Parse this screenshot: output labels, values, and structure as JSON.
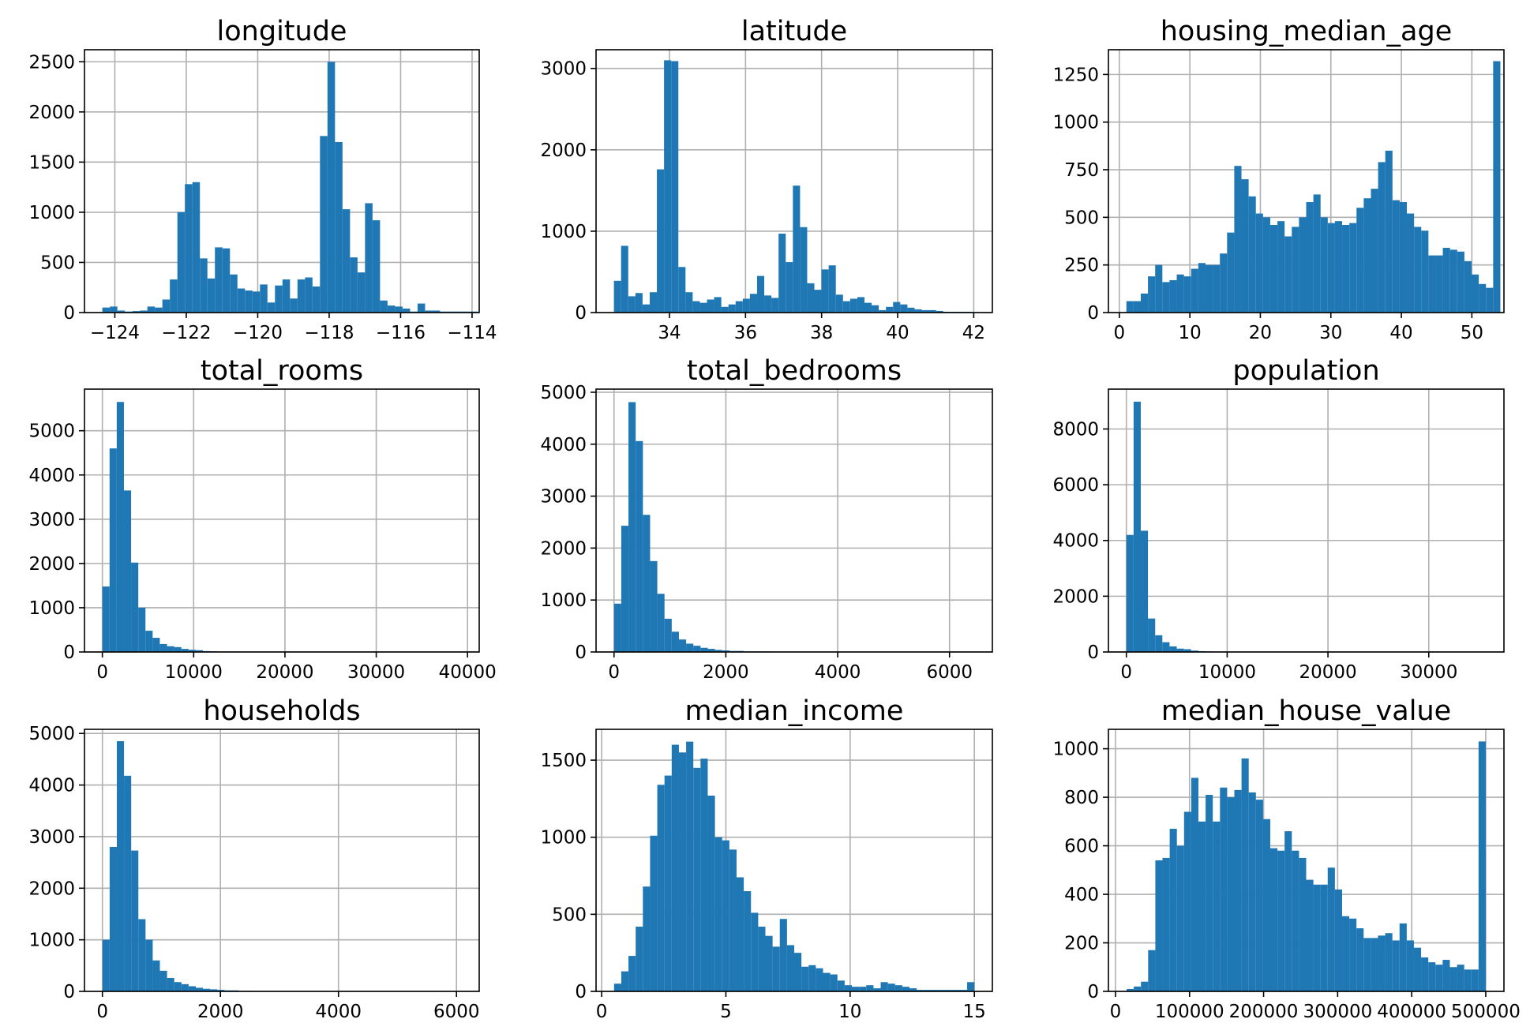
{
  "chart_data": [
    {
      "type": "bar",
      "title": "longitude",
      "xlabel": "",
      "ylabel": "",
      "xlim": [
        -124.85,
        -113.8
      ],
      "ylim": [
        0,
        2620
      ],
      "xticks": [
        -124,
        -122,
        -120,
        -118,
        -116,
        -114
      ],
      "xtick_labels": [
        "−124",
        "−122",
        "−120",
        "−118",
        "−116",
        "−114"
      ],
      "yticks": [
        0,
        500,
        1000,
        1500,
        2000,
        2500
      ],
      "ytick_labels": [
        "0",
        "500",
        "1000",
        "1500",
        "2000",
        "2500"
      ],
      "grid": true,
      "bin_start": -124.35,
      "bin_width": 0.2101,
      "values": [
        50,
        60,
        20,
        10,
        15,
        20,
        60,
        50,
        130,
        330,
        1000,
        1280,
        1300,
        540,
        340,
        650,
        640,
        380,
        240,
        220,
        210,
        280,
        100,
        270,
        330,
        140,
        330,
        350,
        260,
        1760,
        2500,
        1700,
        1030,
        550,
        400,
        1090,
        920,
        120,
        70,
        60,
        40,
        10,
        90,
        20,
        20,
        10,
        10,
        10,
        10,
        10
      ]
    },
    {
      "type": "bar",
      "title": "latitude",
      "xlabel": "",
      "ylabel": "",
      "xlim": [
        32.07,
        42.49
      ],
      "ylim": [
        0,
        3230
      ],
      "xticks": [
        34,
        36,
        38,
        40,
        42
      ],
      "xtick_labels": [
        "34",
        "36",
        "38",
        "40",
        "42"
      ],
      "yticks": [
        0,
        1000,
        2000,
        3000
      ],
      "ytick_labels": [
        "0",
        "1000",
        "2000",
        "3000"
      ],
      "grid": true,
      "bin_start": 32.54,
      "bin_width": 0.1882,
      "values": [
        390,
        820,
        200,
        240,
        100,
        250,
        1760,
        3100,
        3090,
        560,
        250,
        140,
        120,
        160,
        190,
        70,
        100,
        140,
        170,
        230,
        450,
        210,
        180,
        970,
        620,
        1560,
        1050,
        360,
        280,
        530,
        580,
        220,
        140,
        170,
        190,
        120,
        90,
        30,
        70,
        130,
        100,
        60,
        40,
        30,
        30,
        20,
        10,
        10,
        10,
        10
      ]
    },
    {
      "type": "bar",
      "title": "housing_median_age",
      "xlabel": "",
      "ylabel": "",
      "xlim": [
        -1.55,
        54.55
      ],
      "ylim": [
        0,
        1380
      ],
      "xticks": [
        0,
        10,
        20,
        30,
        40,
        50
      ],
      "xtick_labels": [
        "0",
        "10",
        "20",
        "30",
        "40",
        "50"
      ],
      "yticks": [
        0,
        250,
        500,
        750,
        1000,
        1250
      ],
      "ytick_labels": [
        "0",
        "250",
        "500",
        "750",
        "1000",
        "1250"
      ],
      "grid": true,
      "bin_start": 1,
      "bin_width": 1.02,
      "values": [
        60,
        60,
        100,
        190,
        250,
        160,
        170,
        200,
        190,
        230,
        260,
        250,
        250,
        310,
        420,
        770,
        700,
        610,
        520,
        500,
        460,
        480,
        400,
        450,
        500,
        580,
        620,
        500,
        470,
        480,
        460,
        470,
        550,
        600,
        650,
        790,
        850,
        590,
        580,
        520,
        450,
        430,
        300,
        300,
        340,
        330,
        320,
        270,
        200,
        150,
        130,
        1320
      ]
    },
    {
      "type": "bar",
      "title": "total_rooms",
      "xlabel": "",
      "ylabel": "",
      "xlim": [
        -1960,
        41280
      ],
      "ylim": [
        0,
        5940
      ],
      "xticks": [
        0,
        10000,
        20000,
        30000,
        40000
      ],
      "xtick_labels": [
        "0",
        "10000",
        "20000",
        "30000",
        "40000"
      ],
      "yticks": [
        0,
        1000,
        2000,
        3000,
        4000,
        5000
      ],
      "ytick_labels": [
        "0",
        "1000",
        "2000",
        "3000",
        "4000",
        "5000"
      ],
      "grid": true,
      "bin_start": 2,
      "bin_width": 786.4,
      "values": [
        1480,
        4600,
        5650,
        3650,
        2020,
        1000,
        480,
        320,
        180,
        130,
        110,
        70,
        50,
        40,
        20,
        15,
        10,
        10,
        10,
        5,
        5,
        5,
        5,
        5,
        0,
        0,
        0,
        0,
        5,
        0,
        0,
        0,
        0,
        0,
        0,
        0,
        0,
        0,
        0,
        0,
        0,
        0,
        0,
        0,
        0,
        0,
        0,
        0,
        0,
        0
      ]
    },
    {
      "type": "bar",
      "title": "total_bedrooms",
      "xlabel": "",
      "ylabel": "",
      "xlim": [
        -321,
        6766
      ],
      "ylim": [
        0,
        5060
      ],
      "xticks": [
        0,
        2000,
        4000,
        6000
      ],
      "xtick_labels": [
        "0",
        "2000",
        "4000",
        "6000"
      ],
      "yticks": [
        0,
        1000,
        2000,
        3000,
        4000,
        5000
      ],
      "ytick_labels": [
        "0",
        "1000",
        "2000",
        "3000",
        "4000",
        "5000"
      ],
      "grid": true,
      "bin_start": 1,
      "bin_width": 128.88,
      "values": [
        930,
        2430,
        4810,
        4060,
        2640,
        1750,
        1120,
        640,
        390,
        240,
        160,
        120,
        80,
        60,
        40,
        30,
        20,
        20,
        10,
        10,
        10,
        10,
        5,
        5,
        5,
        5,
        5,
        5,
        5,
        0,
        0,
        0,
        0,
        0,
        0,
        0,
        0,
        0,
        0,
        0,
        0,
        0,
        0,
        0,
        0,
        0,
        0,
        0,
        0,
        0
      ]
    },
    {
      "type": "bar",
      "title": "population",
      "xlabel": "",
      "ylabel": "",
      "xlim": [
        -1780,
        37460
      ],
      "ylim": [
        0,
        9430
      ],
      "xticks": [
        0,
        10000,
        20000,
        30000
      ],
      "xtick_labels": [
        "0",
        "10000",
        "20000",
        "30000"
      ],
      "yticks": [
        0,
        2000,
        4000,
        6000,
        8000
      ],
      "ytick_labels": [
        "0",
        "2000",
        "4000",
        "6000",
        "8000"
      ],
      "grid": true,
      "bin_start": 3,
      "bin_width": 713.56,
      "values": [
        4200,
        8980,
        4350,
        1200,
        600,
        350,
        200,
        120,
        100,
        50,
        30,
        20,
        10,
        10,
        5,
        5,
        5,
        5,
        5,
        0,
        0,
        0,
        0,
        0,
        0,
        0,
        0,
        0,
        0,
        0,
        0,
        0,
        0,
        0,
        0,
        0,
        0,
        0,
        0,
        0,
        0,
        0,
        0,
        0,
        0,
        0,
        0,
        0,
        0,
        5
      ]
    },
    {
      "type": "bar",
      "title": "households",
      "xlabel": "",
      "ylabel": "",
      "xlim": [
        -304,
        6385
      ],
      "ylim": [
        0,
        5080
      ],
      "xticks": [
        0,
        2000,
        4000,
        6000
      ],
      "xtick_labels": [
        "0",
        "2000",
        "4000",
        "6000"
      ],
      "yticks": [
        0,
        1000,
        2000,
        3000,
        4000,
        5000
      ],
      "ytick_labels": [
        "0",
        "1000",
        "2000",
        "3000",
        "4000",
        "5000"
      ],
      "grid": true,
      "bin_start": 1,
      "bin_width": 121.62,
      "values": [
        1000,
        2800,
        4850,
        4180,
        2730,
        1400,
        1000,
        600,
        400,
        260,
        180,
        140,
        100,
        70,
        50,
        40,
        30,
        20,
        20,
        10,
        10,
        5,
        5,
        5,
        5,
        5,
        0,
        0,
        0,
        0,
        0,
        0,
        0,
        0,
        0,
        0,
        0,
        0,
        0,
        0,
        0,
        0,
        0,
        0,
        0,
        0,
        0,
        0,
        0,
        0
      ]
    },
    {
      "type": "bar",
      "title": "median_income",
      "xlabel": "",
      "ylabel": "",
      "xlim": [
        -0.225,
        15.725
      ],
      "ylim": [
        0,
        1700
      ],
      "xticks": [
        0,
        5,
        10,
        15
      ],
      "xtick_labels": [
        "0",
        "5",
        "10",
        "15"
      ],
      "yticks": [
        0,
        500,
        1000,
        1500
      ],
      "ytick_labels": [
        "0",
        "500",
        "1000",
        "1500"
      ],
      "grid": true,
      "bin_start": 0.4999,
      "bin_width": 0.29,
      "values": [
        50,
        130,
        230,
        420,
        680,
        1010,
        1340,
        1400,
        1600,
        1550,
        1620,
        1450,
        1510,
        1270,
        1000,
        980,
        920,
        740,
        650,
        510,
        420,
        360,
        290,
        470,
        300,
        250,
        160,
        170,
        150,
        120,
        110,
        70,
        40,
        30,
        30,
        40,
        20,
        60,
        50,
        40,
        30,
        20,
        10,
        10,
        10,
        10,
        10,
        10,
        10,
        60
      ]
    },
    {
      "type": "bar",
      "title": "median_house_value",
      "xlabel": "",
      "ylabel": "",
      "xlim": [
        -9550,
        524580
      ],
      "ylim": [
        0,
        1080
      ],
      "xticks": [
        0,
        100000,
        200000,
        300000,
        400000,
        500000
      ],
      "xtick_labels": [
        "0",
        "100000",
        "200000",
        "300000",
        "400000",
        "500000"
      ],
      "yticks": [
        0,
        200,
        400,
        600,
        800,
        1000
      ],
      "ytick_labels": [
        "0",
        "200",
        "400",
        "600",
        "800",
        "1000"
      ],
      "grid": true,
      "bin_start": 14999,
      "bin_width": 9700,
      "values": [
        10,
        20,
        40,
        170,
        540,
        550,
        670,
        600,
        740,
        880,
        700,
        810,
        700,
        840,
        800,
        830,
        960,
        820,
        790,
        710,
        590,
        580,
        660,
        580,
        550,
        460,
        440,
        440,
        510,
        420,
        310,
        300,
        260,
        220,
        220,
        230,
        240,
        210,
        280,
        210,
        180,
        140,
        120,
        110,
        130,
        100,
        110,
        90,
        90,
        1030
      ]
    }
  ]
}
